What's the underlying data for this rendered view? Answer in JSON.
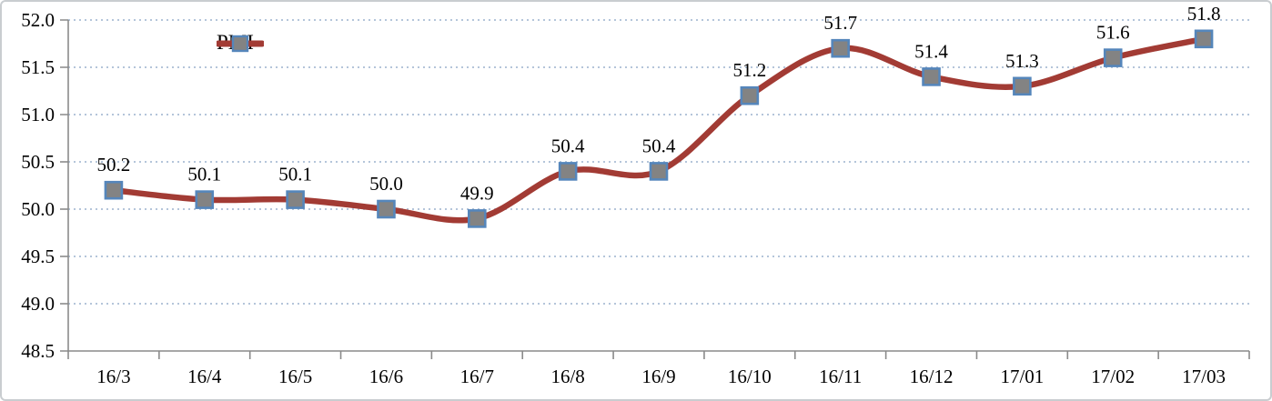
{
  "chart_data": {
    "type": "line",
    "title": "",
    "xlabel": "",
    "ylabel": "",
    "categories": [
      "16/3",
      "16/4",
      "16/5",
      "16/6",
      "16/7",
      "16/8",
      "16/9",
      "16/10",
      "16/11",
      "16/12",
      "17/01",
      "17/02",
      "17/03"
    ],
    "series": [
      {
        "name": "PMI",
        "values": [
          50.2,
          50.1,
          50.1,
          50.0,
          49.9,
          50.4,
          50.4,
          51.2,
          51.7,
          51.4,
          51.3,
          51.6,
          51.8
        ],
        "data_labels": [
          "50.2",
          "50.1",
          "50.1",
          "50.0",
          "49.9",
          "50.4",
          "50.4",
          "51.2",
          "51.7",
          "51.4",
          "51.3",
          "51.6",
          "51.8"
        ]
      }
    ],
    "ylim": [
      48.5,
      52.0
    ],
    "ytick_step": 0.5,
    "yticks": [
      "52.0",
      "51.5",
      "51.0",
      "50.5",
      "50.0",
      "49.5",
      "49.0",
      "48.5"
    ],
    "grid": "horizontal-dotted",
    "smooth": true,
    "marker": "square",
    "legend": {
      "label": "PMI",
      "position": "inside-top-left"
    },
    "colors": {
      "line": "#A23B34",
      "marker_fill": "#838383",
      "marker_border": "#5586BB",
      "gridline": "#B4C5DA",
      "axis": "#8A8A8A",
      "text": "#000000",
      "frame_border": "#C9CDD0",
      "background": "#FFFFFF"
    }
  }
}
